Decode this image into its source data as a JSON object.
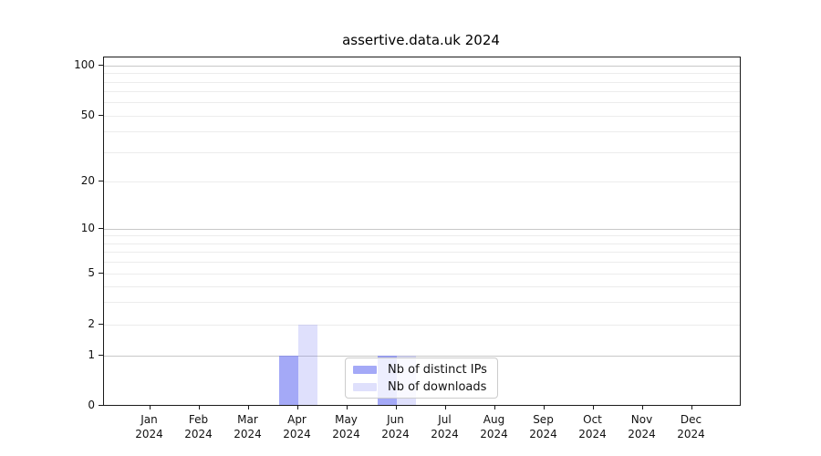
{
  "chart_data": {
    "type": "bar",
    "title": "assertive.data.uk 2024",
    "categories": [
      "Jan",
      "Feb",
      "Mar",
      "Apr",
      "May",
      "Jun",
      "Jul",
      "Aug",
      "Sep",
      "Oct",
      "Nov",
      "Dec"
    ],
    "x_tick_line2": "2024",
    "series": [
      {
        "name": "Nb of distinct IPs",
        "color": "rgba(108,116,242,0.62)",
        "values": [
          0,
          0,
          0,
          1,
          0,
          1,
          0,
          0,
          0,
          0,
          0,
          0
        ]
      },
      {
        "name": "Nb of downloads",
        "color": "rgba(108,116,242,0.22)",
        "values": [
          0,
          0,
          0,
          2,
          0,
          1,
          0,
          0,
          0,
          0,
          0,
          0
        ]
      }
    ],
    "y_axis": {
      "scale": "symlog",
      "tick_values": [
        0,
        1,
        2,
        5,
        10,
        20,
        50,
        100
      ],
      "tick_labels": [
        "0",
        "1",
        "2",
        "5",
        "10",
        "20",
        "50",
        "100"
      ],
      "ylim": [
        0,
        112
      ]
    },
    "legend_entries": [
      "Nb of distinct IPs",
      "Nb of downloads"
    ],
    "grid": true,
    "legend_position": "lower center-right, overlapping Jun bars"
  }
}
